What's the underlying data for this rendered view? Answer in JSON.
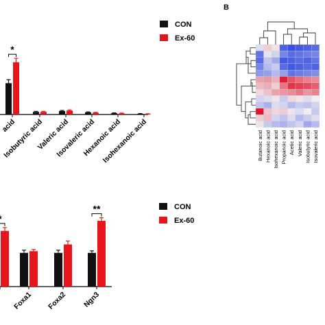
{
  "panel_labels": {
    "b": "B"
  },
  "colors": {
    "con": "#111111",
    "ex60": "#e8141b",
    "heat_low": "#2440e0",
    "heat_mid": "#f2eef2",
    "heat_high": "#e0142a"
  },
  "chart_data": [
    {
      "type": "bar",
      "categories": [
        "acid",
        "Isobutyric acid",
        "Valeric acid",
        "Isovaleric acid",
        "Hexanoic acid",
        "Isohexanoic acid"
      ],
      "series": [
        {
          "name": "CON",
          "values": [
            36,
            3,
            4,
            2.5,
            1.5,
            0.8
          ]
        },
        {
          "name": "Ex-60",
          "values": [
            60,
            3,
            4.5,
            2,
            1.2,
            0.6
          ]
        }
      ],
      "errors": [
        [
          4,
          0.6,
          0.7,
          0.5,
          0.4,
          0.3
        ],
        [
          4.5,
          0.6,
          0.8,
          0.5,
          0.4,
          0.3
        ]
      ],
      "ylim": [
        0,
        100
      ],
      "annotations": [
        {
          "category": 0,
          "text": "*"
        }
      ],
      "legend": [
        "CON",
        "Ex-60"
      ]
    },
    {
      "type": "heatmap",
      "columns": [
        "Butanoic acid",
        "Hexanoic acid",
        "Isohexanoic acid",
        "Propanoic acid",
        "Acetic acid",
        "Valeric acid",
        "Isobutyric acid",
        "Isovaleric acid"
      ],
      "rows": 13,
      "values": [
        [
          -0.2,
          0.3,
          0.1,
          -1.6,
          -1.8,
          -1.7,
          -1.6,
          -1.5
        ],
        [
          -1.4,
          -0.1,
          -0.3,
          -1.2,
          -1.5,
          -1.4,
          -1.3,
          -1.2
        ],
        [
          -1.5,
          -0.5,
          -0.8,
          -1.7,
          -1.6,
          -1.5,
          -1.6,
          -1.4
        ],
        [
          -1.2,
          -0.6,
          -0.4,
          -1.5,
          -1.7,
          -1.6,
          -1.5,
          -1.6
        ],
        [
          -1.0,
          -0.9,
          -0.6,
          -0.9,
          -1.4,
          -1.3,
          -1.2,
          -1.1
        ],
        [
          0.7,
          0.8,
          0.6,
          1.9,
          1.4,
          1.2,
          1.0,
          0.9
        ],
        [
          0.5,
          0.6,
          0.3,
          1.1,
          1.7,
          1.6,
          1.5,
          1.3
        ],
        [
          0.2,
          0.4,
          0.7,
          0.8,
          0.9,
          1.1,
          0.8,
          1.0
        ],
        [
          -0.3,
          -0.2,
          0.1,
          -0.4,
          0.2,
          0.1,
          -0.2,
          0.0
        ],
        [
          -0.5,
          -0.7,
          -0.2,
          -0.3,
          -0.6,
          -0.4,
          -0.5,
          -0.3
        ],
        [
          2.0,
          0.4,
          0.2,
          0.3,
          0.1,
          -0.2,
          0.0,
          -0.4
        ],
        [
          0.3,
          0.5,
          -0.3,
          -0.5,
          -0.2,
          -0.6,
          -0.4,
          -0.2
        ],
        [
          0.1,
          -0.4,
          -0.6,
          -0.7,
          -0.5,
          -0.3,
          -0.8,
          -0.6
        ]
      ]
    },
    {
      "type": "bar",
      "categories": [
        "",
        "Foxa1",
        "Foxa2",
        "Ngn3"
      ],
      "series": [
        {
          "name": "CON",
          "values": [
            0,
            1.0,
            1.0,
            1.0
          ]
        },
        {
          "name": "Ex-60",
          "values": [
            1.65,
            1.05,
            1.25,
            1.95
          ]
        }
      ],
      "errors": [
        [
          0,
          0.08,
          0.08,
          0.06
        ],
        [
          0.1,
          0.05,
          0.1,
          0.09
        ]
      ],
      "ylim": [
        0,
        2.5
      ],
      "annotations": [
        {
          "category": 0,
          "text": "*"
        },
        {
          "category": 3,
          "text": "**"
        }
      ],
      "legend": [
        "CON",
        "Ex-60"
      ]
    }
  ]
}
